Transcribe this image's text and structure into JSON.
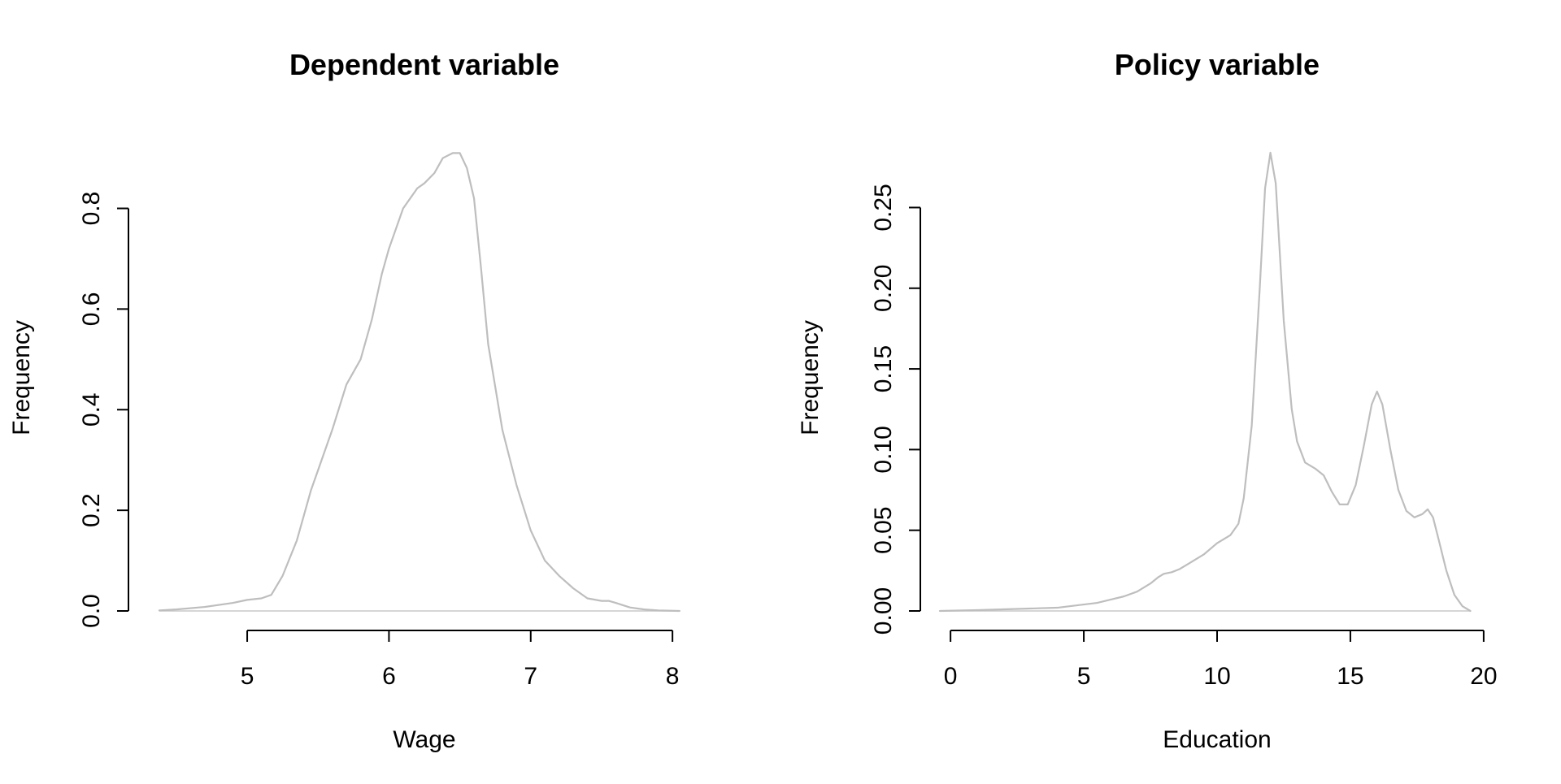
{
  "chart_data": [
    {
      "type": "line",
      "title": "Dependent variable",
      "xlabel": "Wage",
      "ylabel": "Frequency",
      "xticks": [
        5,
        6,
        7,
        8
      ],
      "xtick_labels": [
        "5",
        "6",
        "7",
        "8"
      ],
      "yticks": [
        0,
        0.2,
        0.4,
        0.6,
        0.8
      ],
      "ytick_labels": [
        "0.0",
        "0.2",
        "0.4",
        "0.6",
        "0.8"
      ],
      "xlim": [
        4.3,
        8.2
      ],
      "ylim": [
        0,
        0.93
      ],
      "grid": false,
      "color": "#bebebe",
      "series": [
        {
          "x": [
            4.38,
            4.5,
            4.7,
            4.9,
            5.0,
            5.1,
            5.17,
            5.25,
            5.35,
            5.45,
            5.5,
            5.6,
            5.7,
            5.8,
            5.88,
            5.95,
            6.0,
            6.1,
            6.2,
            6.25,
            6.32,
            6.38,
            6.45,
            6.5,
            6.55,
            6.6,
            6.65,
            6.7,
            6.8,
            6.9,
            7.0,
            7.1,
            7.2,
            7.3,
            7.4,
            7.5,
            7.55,
            7.6,
            7.7,
            7.8,
            7.9,
            8.05
          ],
          "y": [
            0.001,
            0.003,
            0.008,
            0.016,
            0.022,
            0.025,
            0.032,
            0.07,
            0.14,
            0.24,
            0.28,
            0.36,
            0.45,
            0.5,
            0.58,
            0.67,
            0.72,
            0.8,
            0.84,
            0.85,
            0.87,
            0.9,
            0.91,
            0.91,
            0.88,
            0.82,
            0.68,
            0.53,
            0.36,
            0.25,
            0.16,
            0.1,
            0.07,
            0.045,
            0.025,
            0.02,
            0.02,
            0.016,
            0.007,
            0.003,
            0.001,
            0.0
          ]
        }
      ]
    },
    {
      "type": "line",
      "title": "Policy variable",
      "xlabel": "Education",
      "ylabel": "Frequency",
      "xticks": [
        0,
        5,
        10,
        15,
        20
      ],
      "xtick_labels": [
        "0",
        "5",
        "10",
        "15",
        "20"
      ],
      "yticks": [
        0,
        0.05,
        0.1,
        0.15,
        0.2,
        0.25
      ],
      "ytick_labels": [
        "0.00",
        "0.05",
        "0.10",
        "0.15",
        "0.20",
        "0.25"
      ],
      "xlim": [
        -0.4,
        20.4
      ],
      "ylim": [
        0,
        0.29
      ],
      "grid": false,
      "color": "#bebebe",
      "series": [
        {
          "x": [
            -0.4,
            1,
            2,
            3,
            4,
            4.5,
            5,
            5.5,
            6,
            6.5,
            7,
            7.5,
            7.8,
            8,
            8.3,
            8.6,
            9,
            9.5,
            10,
            10.5,
            10.8,
            11,
            11.3,
            11.6,
            11.8,
            12,
            12.2,
            12.5,
            12.8,
            13,
            13.3,
            13.7,
            14,
            14.3,
            14.6,
            14.9,
            15.2,
            15.5,
            15.8,
            16,
            16.2,
            16.5,
            16.8,
            17.1,
            17.4,
            17.7,
            17.9,
            18.1,
            18.3,
            18.6,
            18.9,
            19.2,
            19.5
          ],
          "y": [
            0.0,
            0.0005,
            0.001,
            0.0015,
            0.002,
            0.003,
            0.004,
            0.005,
            0.007,
            0.009,
            0.012,
            0.017,
            0.021,
            0.023,
            0.024,
            0.026,
            0.03,
            0.035,
            0.042,
            0.047,
            0.054,
            0.07,
            0.115,
            0.2,
            0.262,
            0.284,
            0.265,
            0.18,
            0.125,
            0.105,
            0.092,
            0.088,
            0.084,
            0.074,
            0.066,
            0.066,
            0.078,
            0.102,
            0.128,
            0.136,
            0.128,
            0.1,
            0.075,
            0.062,
            0.058,
            0.06,
            0.063,
            0.058,
            0.045,
            0.025,
            0.01,
            0.003,
            0.0
          ]
        }
      ]
    }
  ]
}
